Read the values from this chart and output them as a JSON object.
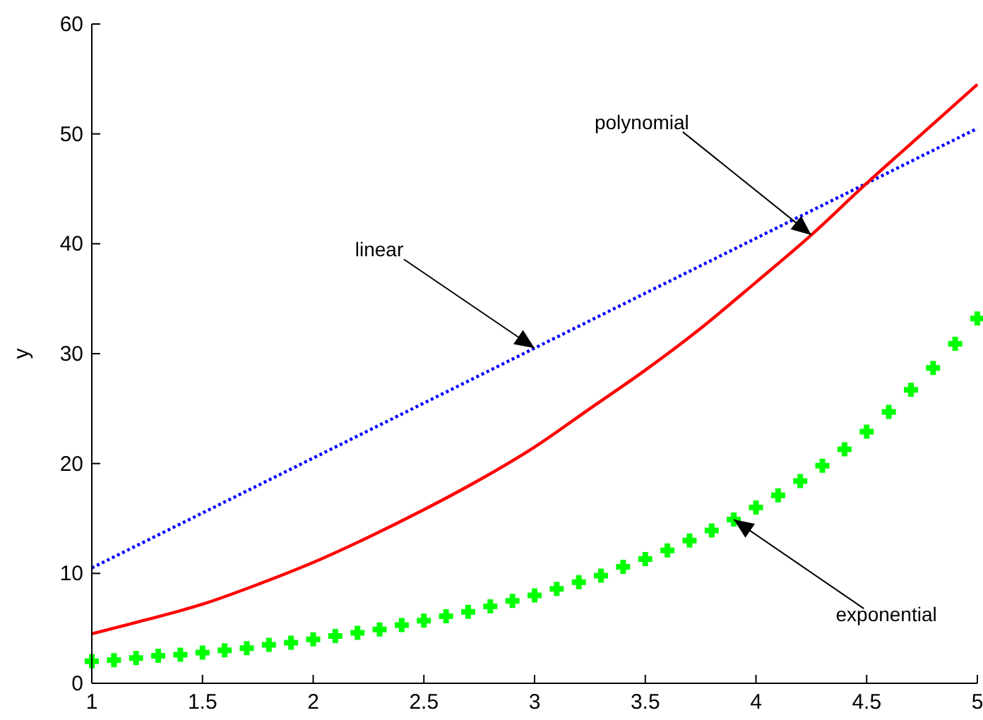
{
  "chart_data": {
    "type": "line",
    "ylabel": "y",
    "xlim": [
      1,
      5
    ],
    "ylim": [
      0,
      60
    ],
    "xticks": [
      1,
      1.5,
      2,
      2.5,
      3,
      3.5,
      4,
      4.5,
      5
    ],
    "yticks": [
      0,
      10,
      20,
      30,
      40,
      50,
      60
    ],
    "grid": false,
    "series": [
      {
        "type": "line",
        "color": "#0000ff",
        "line_style": "dotted",
        "x": [
          1,
          2,
          3,
          4,
          5
        ],
        "values": [
          10.5,
          20.5,
          30.5,
          40.5,
          50.5
        ]
      },
      {
        "color": "#ff0000",
        "line_style": "solid",
        "x": [
          1,
          1.25,
          1.5,
          1.75,
          2,
          2.25,
          2.5,
          2.75,
          3,
          3.25,
          3.5,
          3.75,
          4,
          4.25,
          4.5,
          4.75,
          5
        ],
        "values": [
          4.5,
          5.8,
          7.2,
          9,
          11,
          13.3,
          15.8,
          18.5,
          21.5,
          25,
          28.5,
          32.3,
          36.5,
          40.8,
          45.5,
          50,
          54.5
        ]
      },
      {
        "type": "scatter",
        "color": "#00ff00",
        "marker": "cross",
        "x": [
          1,
          1.1,
          1.2,
          1.3,
          1.4,
          1.5,
          1.6,
          1.7,
          1.8,
          1.9,
          2,
          2.1,
          2.2,
          2.3,
          2.4,
          2.5,
          2.6,
          2.7,
          2.8,
          2.9,
          3,
          3.1,
          3.2,
          3.3,
          3.4,
          3.5,
          3.6,
          3.7,
          3.8,
          3.9,
          4,
          4.1,
          4.2,
          4.3,
          4.4,
          4.5,
          4.6,
          4.7,
          4.8,
          4.9,
          5
        ],
        "values": [
          2,
          2.1,
          2.3,
          2.5,
          2.6,
          2.8,
          3,
          3.2,
          3.5,
          3.7,
          4,
          4.3,
          4.6,
          4.9,
          5.3,
          5.7,
          6.1,
          6.5,
          7,
          7.5,
          8,
          8.6,
          9.2,
          9.8,
          10.6,
          11.3,
          12.1,
          13,
          13.9,
          14.9,
          16,
          17.1,
          18.4,
          19.8,
          21.3,
          22.9,
          24.7,
          26.7,
          28.7,
          30.9,
          33.2
        ]
      }
    ],
    "annotations": [
      {
        "text": "linear",
        "x": 3,
        "y": 30.5
      },
      {
        "text": "polynomial",
        "x": 4.25,
        "y": 40.8
      },
      {
        "text": "exponential",
        "x": 3.9,
        "y": 14.9
      }
    ]
  }
}
